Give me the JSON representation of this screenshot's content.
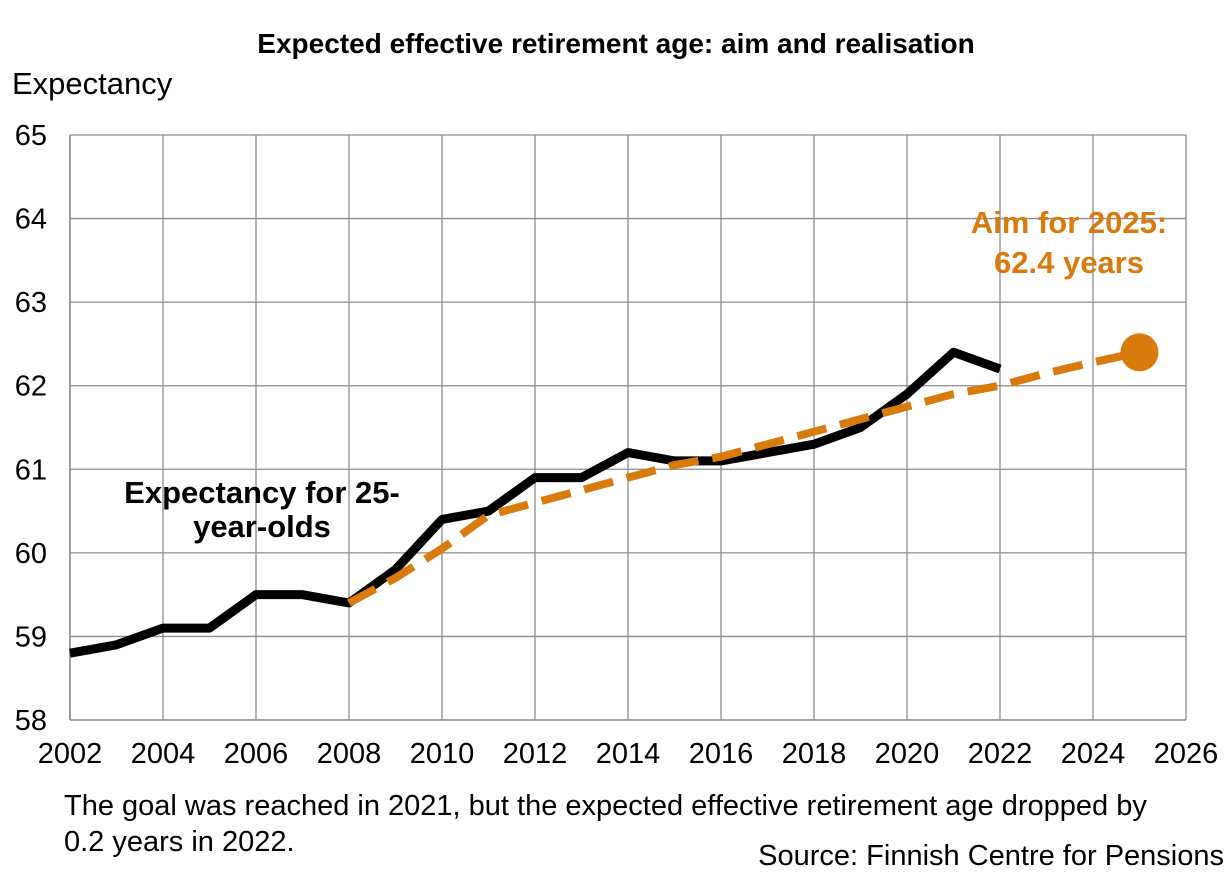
{
  "chart_data": {
    "type": "line",
    "title": "Expected effective retirement age: aim and realisation",
    "ylabel": "Expectancy",
    "xlabel": "",
    "xlim": [
      2002,
      2026
    ],
    "ylim": [
      58,
      65
    ],
    "x_ticks": [
      "2002",
      "2004",
      "2006",
      "2008",
      "2010",
      "2012",
      "2014",
      "2016",
      "2018",
      "2020",
      "2022",
      "2024",
      "2026"
    ],
    "y_ticks": [
      "58",
      "59",
      "60",
      "61",
      "62",
      "63",
      "64",
      "65"
    ],
    "grid": true,
    "series": [
      {
        "name": "Expectancy for 25-year-olds",
        "style": "solid",
        "color": "#000000",
        "x": [
          2002,
          2003,
          2004,
          2005,
          2006,
          2007,
          2008,
          2009,
          2010,
          2011,
          2012,
          2013,
          2014,
          2015,
          2016,
          2017,
          2018,
          2019,
          2020,
          2021,
          2022
        ],
        "y": [
          58.8,
          58.9,
          59.1,
          59.1,
          59.5,
          59.5,
          59.4,
          59.8,
          60.4,
          60.5,
          60.9,
          60.9,
          61.2,
          61.1,
          61.1,
          61.2,
          61.3,
          61.5,
          61.9,
          62.4,
          62.2
        ]
      },
      {
        "name": "Aim for 2025: 62.4 years",
        "style": "dashed",
        "color": "#D97A0D",
        "x": [
          2008,
          2009,
          2010,
          2011,
          2012,
          2013,
          2014,
          2015,
          2016,
          2017,
          2018,
          2019,
          2020,
          2021,
          2022,
          2023,
          2024,
          2025
        ],
        "y": [
          59.4,
          59.7,
          60.05,
          60.45,
          60.6,
          60.75,
          60.9,
          61.05,
          61.15,
          61.3,
          61.45,
          61.6,
          61.75,
          61.9,
          62.0,
          62.15,
          62.28,
          62.4
        ]
      }
    ],
    "annotations": {
      "series_label": "Expectancy for 25-year-olds",
      "aim_label": "Aim for 2025: 62.4 years",
      "note": "The goal was reached in 2021, but the expected effective retirement age dropped by 0.2 years in 2022.",
      "source": "Source: Finnish Centre for Pensions"
    }
  }
}
